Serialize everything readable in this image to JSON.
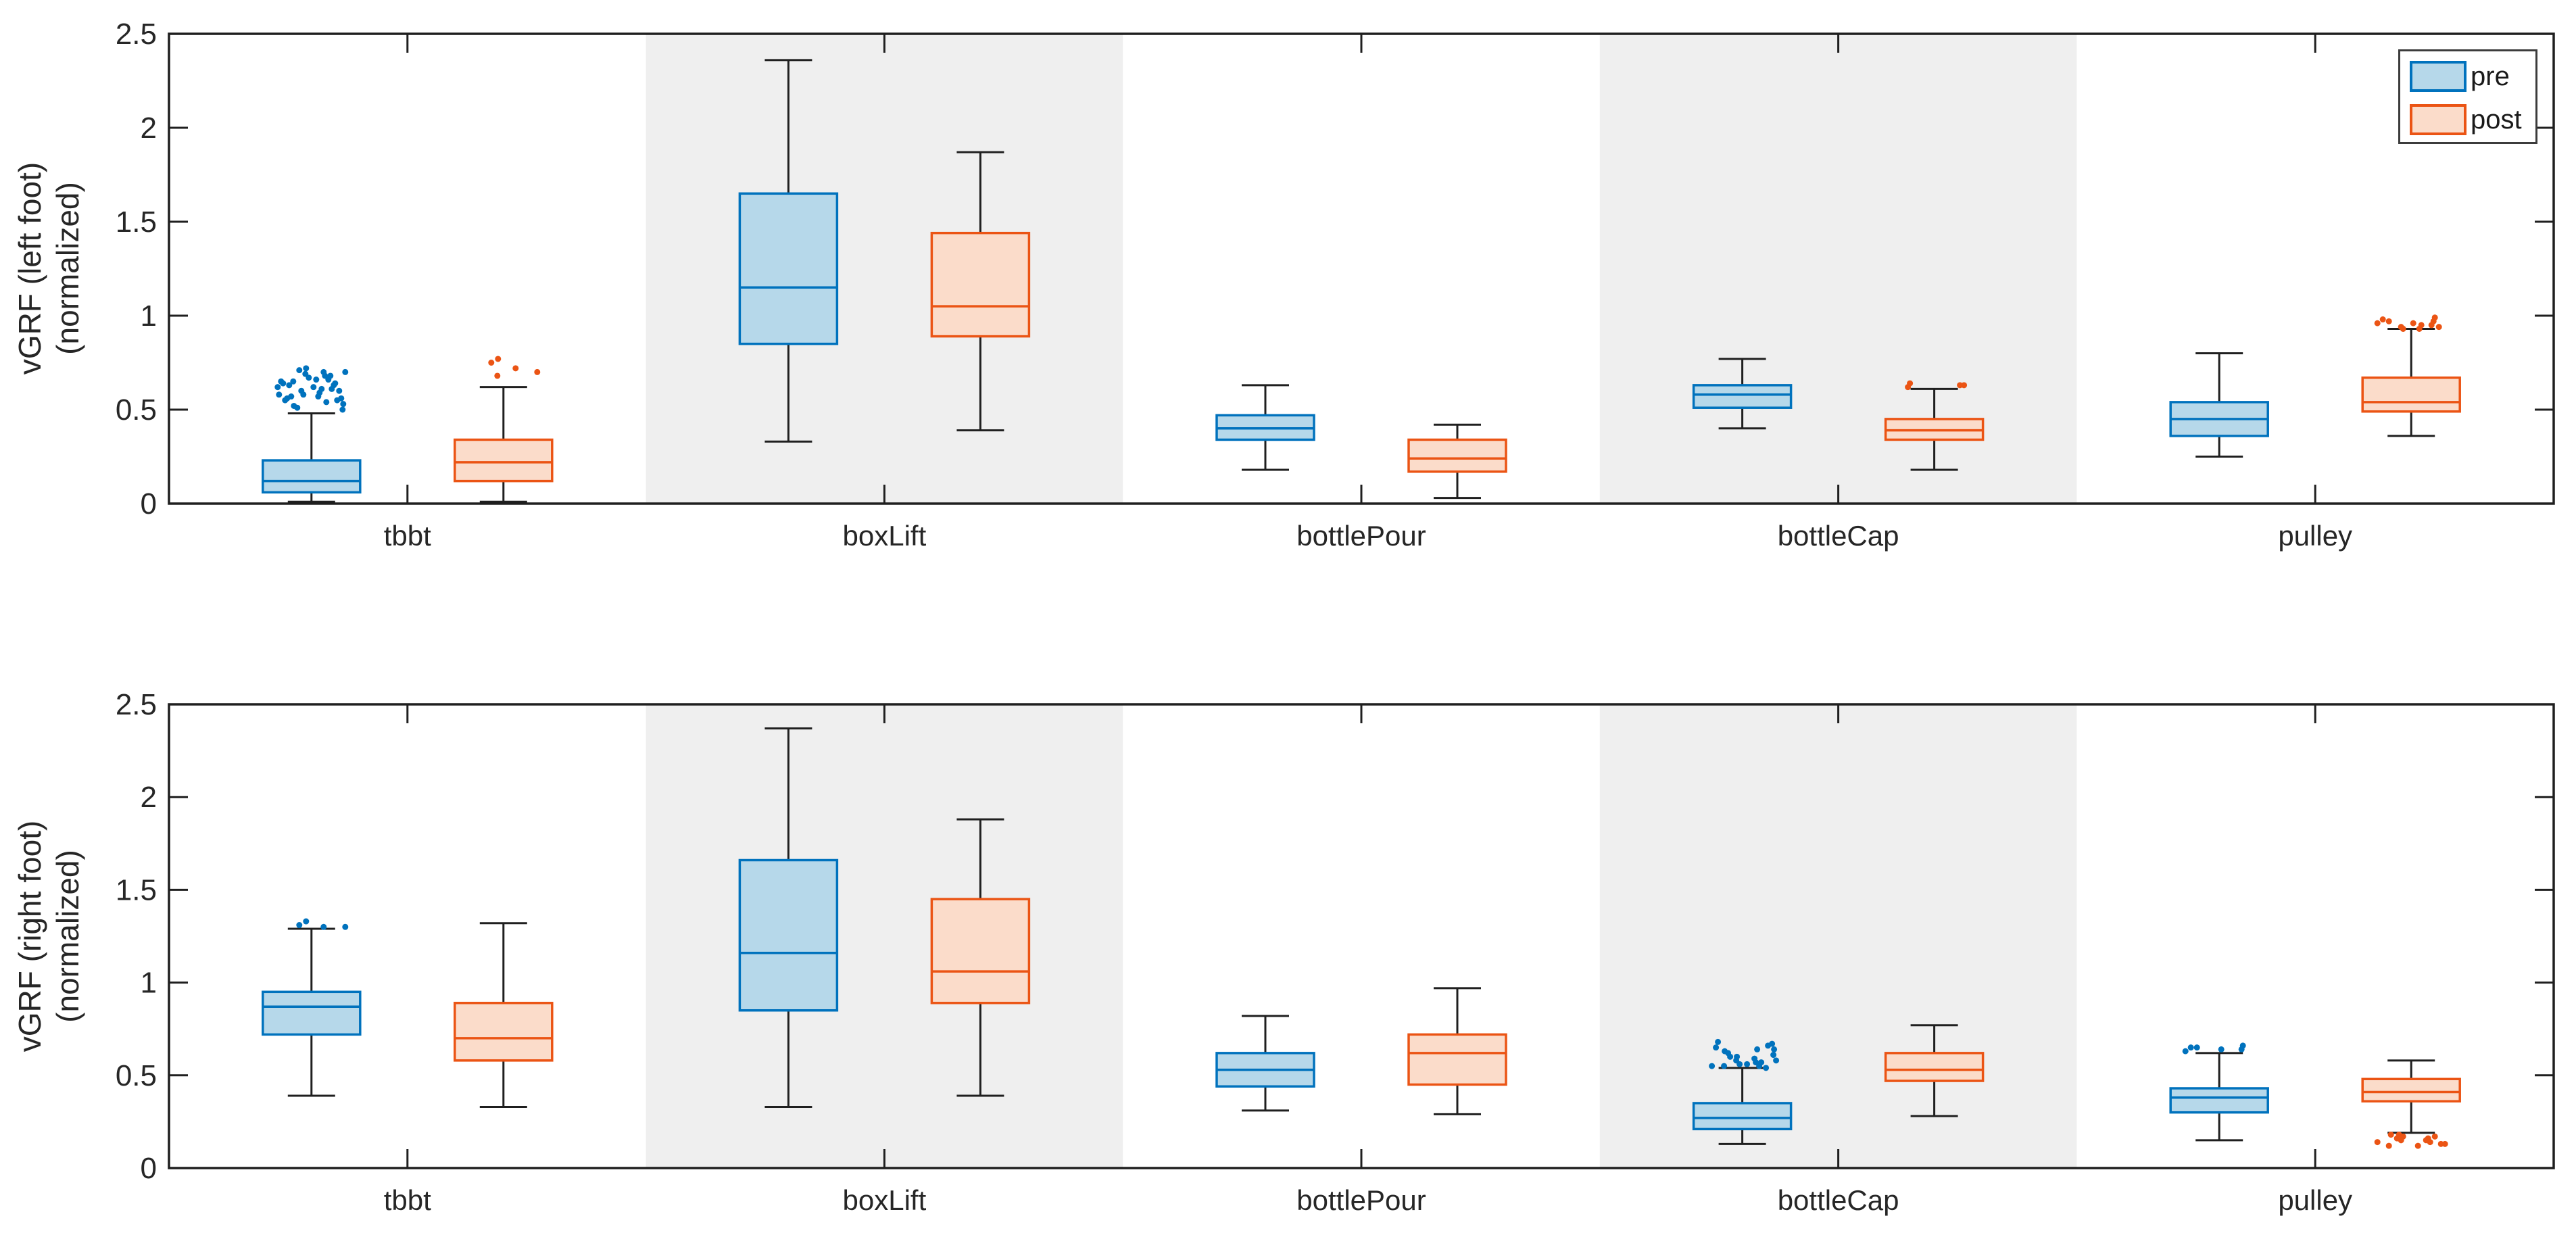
{
  "colors": {
    "pre_edge": "#0072BD",
    "pre_fill": "#B6D8EA",
    "post_edge": "#EB5414",
    "post_fill": "#FBDCCA",
    "shaded_band": "#EFEFEF",
    "axis_line": "#1F1F1F",
    "whisker_line": "#1F1F1F",
    "text": "#262626",
    "background": "#FFFFFF"
  },
  "legend": {
    "position": "top-right-first-subplot",
    "items": [
      {
        "label": "pre"
      },
      {
        "label": "post"
      }
    ]
  },
  "chart_data": [
    {
      "type": "box",
      "ylabel_line1": "vGRF (left foot)",
      "ylabel_line2": "(normalized)",
      "ylim": [
        0,
        2.5
      ],
      "yticks": [
        0,
        0.5,
        1,
        1.5,
        2,
        2.5
      ],
      "ytick_labels": [
        "0",
        "0.5",
        "1",
        "1.5",
        "2",
        "2.5"
      ],
      "categories": [
        "tbbt",
        "boxLift",
        "bottlePour",
        "bottleCap",
        "pulley"
      ],
      "shaded_category_indices": [
        1,
        3
      ],
      "grid": false,
      "series": [
        {
          "name": "pre",
          "boxes": [
            {
              "whisker_low": 0.01,
              "q1": 0.06,
              "median": 0.12,
              "q3": 0.23,
              "whisker_high": 0.48,
              "outliers_above": [
                0.72,
                0.71,
                0.7,
                0.7,
                0.69,
                0.68,
                0.68,
                0.67,
                0.66,
                0.66,
                0.65,
                0.65,
                0.64,
                0.64,
                0.63,
                0.63,
                0.62,
                0.62,
                0.61,
                0.61,
                0.6,
                0.6,
                0.59,
                0.58,
                0.58,
                0.57,
                0.57,
                0.56,
                0.56,
                0.55,
                0.55,
                0.54,
                0.53,
                0.52,
                0.51,
                0.5
              ],
              "outliers_below": []
            },
            {
              "whisker_low": 0.33,
              "q1": 0.85,
              "median": 1.15,
              "q3": 1.65,
              "whisker_high": 2.36,
              "outliers_above": [],
              "outliers_below": []
            },
            {
              "whisker_low": 0.18,
              "q1": 0.34,
              "median": 0.4,
              "q3": 0.47,
              "whisker_high": 0.63,
              "outliers_above": [],
              "outliers_below": []
            },
            {
              "whisker_low": 0.4,
              "q1": 0.51,
              "median": 0.58,
              "q3": 0.63,
              "whisker_high": 0.77,
              "outliers_above": [],
              "outliers_below": []
            },
            {
              "whisker_low": 0.25,
              "q1": 0.36,
              "median": 0.45,
              "q3": 0.54,
              "whisker_high": 0.8,
              "outliers_above": [],
              "outliers_below": []
            }
          ]
        },
        {
          "name": "post",
          "boxes": [
            {
              "whisker_low": 0.01,
              "q1": 0.12,
              "median": 0.22,
              "q3": 0.34,
              "whisker_high": 0.62,
              "outliers_above": [
                0.77,
                0.75,
                0.72,
                0.7,
                0.68
              ],
              "outliers_below": []
            },
            {
              "whisker_low": 0.39,
              "q1": 0.89,
              "median": 1.05,
              "q3": 1.44,
              "whisker_high": 1.87,
              "outliers_above": [],
              "outliers_below": []
            },
            {
              "whisker_low": 0.03,
              "q1": 0.17,
              "median": 0.24,
              "q3": 0.34,
              "whisker_high": 0.42,
              "outliers_above": [],
              "outliers_below": []
            },
            {
              "whisker_low": 0.18,
              "q1": 0.34,
              "median": 0.39,
              "q3": 0.45,
              "whisker_high": 0.61,
              "outliers_above": [
                0.64,
                0.63,
                0.63,
                0.62
              ],
              "outliers_below": []
            },
            {
              "whisker_low": 0.36,
              "q1": 0.49,
              "median": 0.54,
              "q3": 0.67,
              "whisker_high": 0.93,
              "outliers_above": [
                0.99,
                0.98,
                0.97,
                0.97,
                0.96,
                0.96,
                0.95,
                0.95,
                0.94,
                0.94,
                0.93,
                0.93
              ],
              "outliers_below": []
            }
          ]
        }
      ]
    },
    {
      "type": "box",
      "ylabel_line1": "vGRF (right foot)",
      "ylabel_line2": "(normalized)",
      "ylim": [
        0,
        2.5
      ],
      "yticks": [
        0,
        0.5,
        1,
        1.5,
        2,
        2.5
      ],
      "ytick_labels": [
        "0",
        "0.5",
        "1",
        "1.5",
        "2",
        "2.5"
      ],
      "categories": [
        "tbbt",
        "boxLift",
        "bottlePour",
        "bottleCap",
        "pulley"
      ],
      "shaded_category_indices": [
        1,
        3
      ],
      "grid": false,
      "series": [
        {
          "name": "pre",
          "boxes": [
            {
              "whisker_low": 0.39,
              "q1": 0.72,
              "median": 0.87,
              "q3": 0.95,
              "whisker_high": 1.29,
              "outliers_above": [
                1.33,
                1.31,
                1.3,
                1.3
              ],
              "outliers_below": []
            },
            {
              "whisker_low": 0.33,
              "q1": 0.85,
              "median": 1.16,
              "q3": 1.66,
              "whisker_high": 2.37,
              "outliers_above": [],
              "outliers_below": []
            },
            {
              "whisker_low": 0.31,
              "q1": 0.44,
              "median": 0.53,
              "q3": 0.62,
              "whisker_high": 0.82,
              "outliers_above": [],
              "outliers_below": []
            },
            {
              "whisker_low": 0.13,
              "q1": 0.21,
              "median": 0.27,
              "q3": 0.35,
              "whisker_high": 0.54,
              "outliers_above": [
                0.68,
                0.67,
                0.66,
                0.65,
                0.64,
                0.64,
                0.63,
                0.62,
                0.61,
                0.6,
                0.6,
                0.59,
                0.58,
                0.58,
                0.57,
                0.57,
                0.56,
                0.56,
                0.55,
                0.55,
                0.55,
                0.54
              ],
              "outliers_below": []
            },
            {
              "whisker_low": 0.15,
              "q1": 0.3,
              "median": 0.38,
              "q3": 0.43,
              "whisker_high": 0.62,
              "outliers_above": [
                0.66,
                0.65,
                0.65,
                0.64,
                0.64,
                0.63
              ],
              "outliers_below": []
            }
          ]
        },
        {
          "name": "post",
          "boxes": [
            {
              "whisker_low": 0.33,
              "q1": 0.58,
              "median": 0.7,
              "q3": 0.89,
              "whisker_high": 1.32,
              "outliers_above": [],
              "outliers_below": []
            },
            {
              "whisker_low": 0.39,
              "q1": 0.89,
              "median": 1.06,
              "q3": 1.45,
              "whisker_high": 1.88,
              "outliers_above": [],
              "outliers_below": []
            },
            {
              "whisker_low": 0.29,
              "q1": 0.45,
              "median": 0.62,
              "q3": 0.72,
              "whisker_high": 0.97,
              "outliers_above": [],
              "outliers_below": []
            },
            {
              "whisker_low": 0.28,
              "q1": 0.47,
              "median": 0.53,
              "q3": 0.62,
              "whisker_high": 0.77,
              "outliers_above": [],
              "outliers_below": []
            },
            {
              "whisker_low": 0.19,
              "q1": 0.36,
              "median": 0.41,
              "q3": 0.48,
              "whisker_high": 0.58,
              "outliers_above": [],
              "outliers_below": [
                0.18,
                0.18,
                0.17,
                0.17,
                0.16,
                0.16,
                0.15,
                0.15,
                0.14,
                0.14,
                0.13,
                0.13,
                0.12,
                0.12
              ]
            }
          ]
        }
      ]
    }
  ]
}
